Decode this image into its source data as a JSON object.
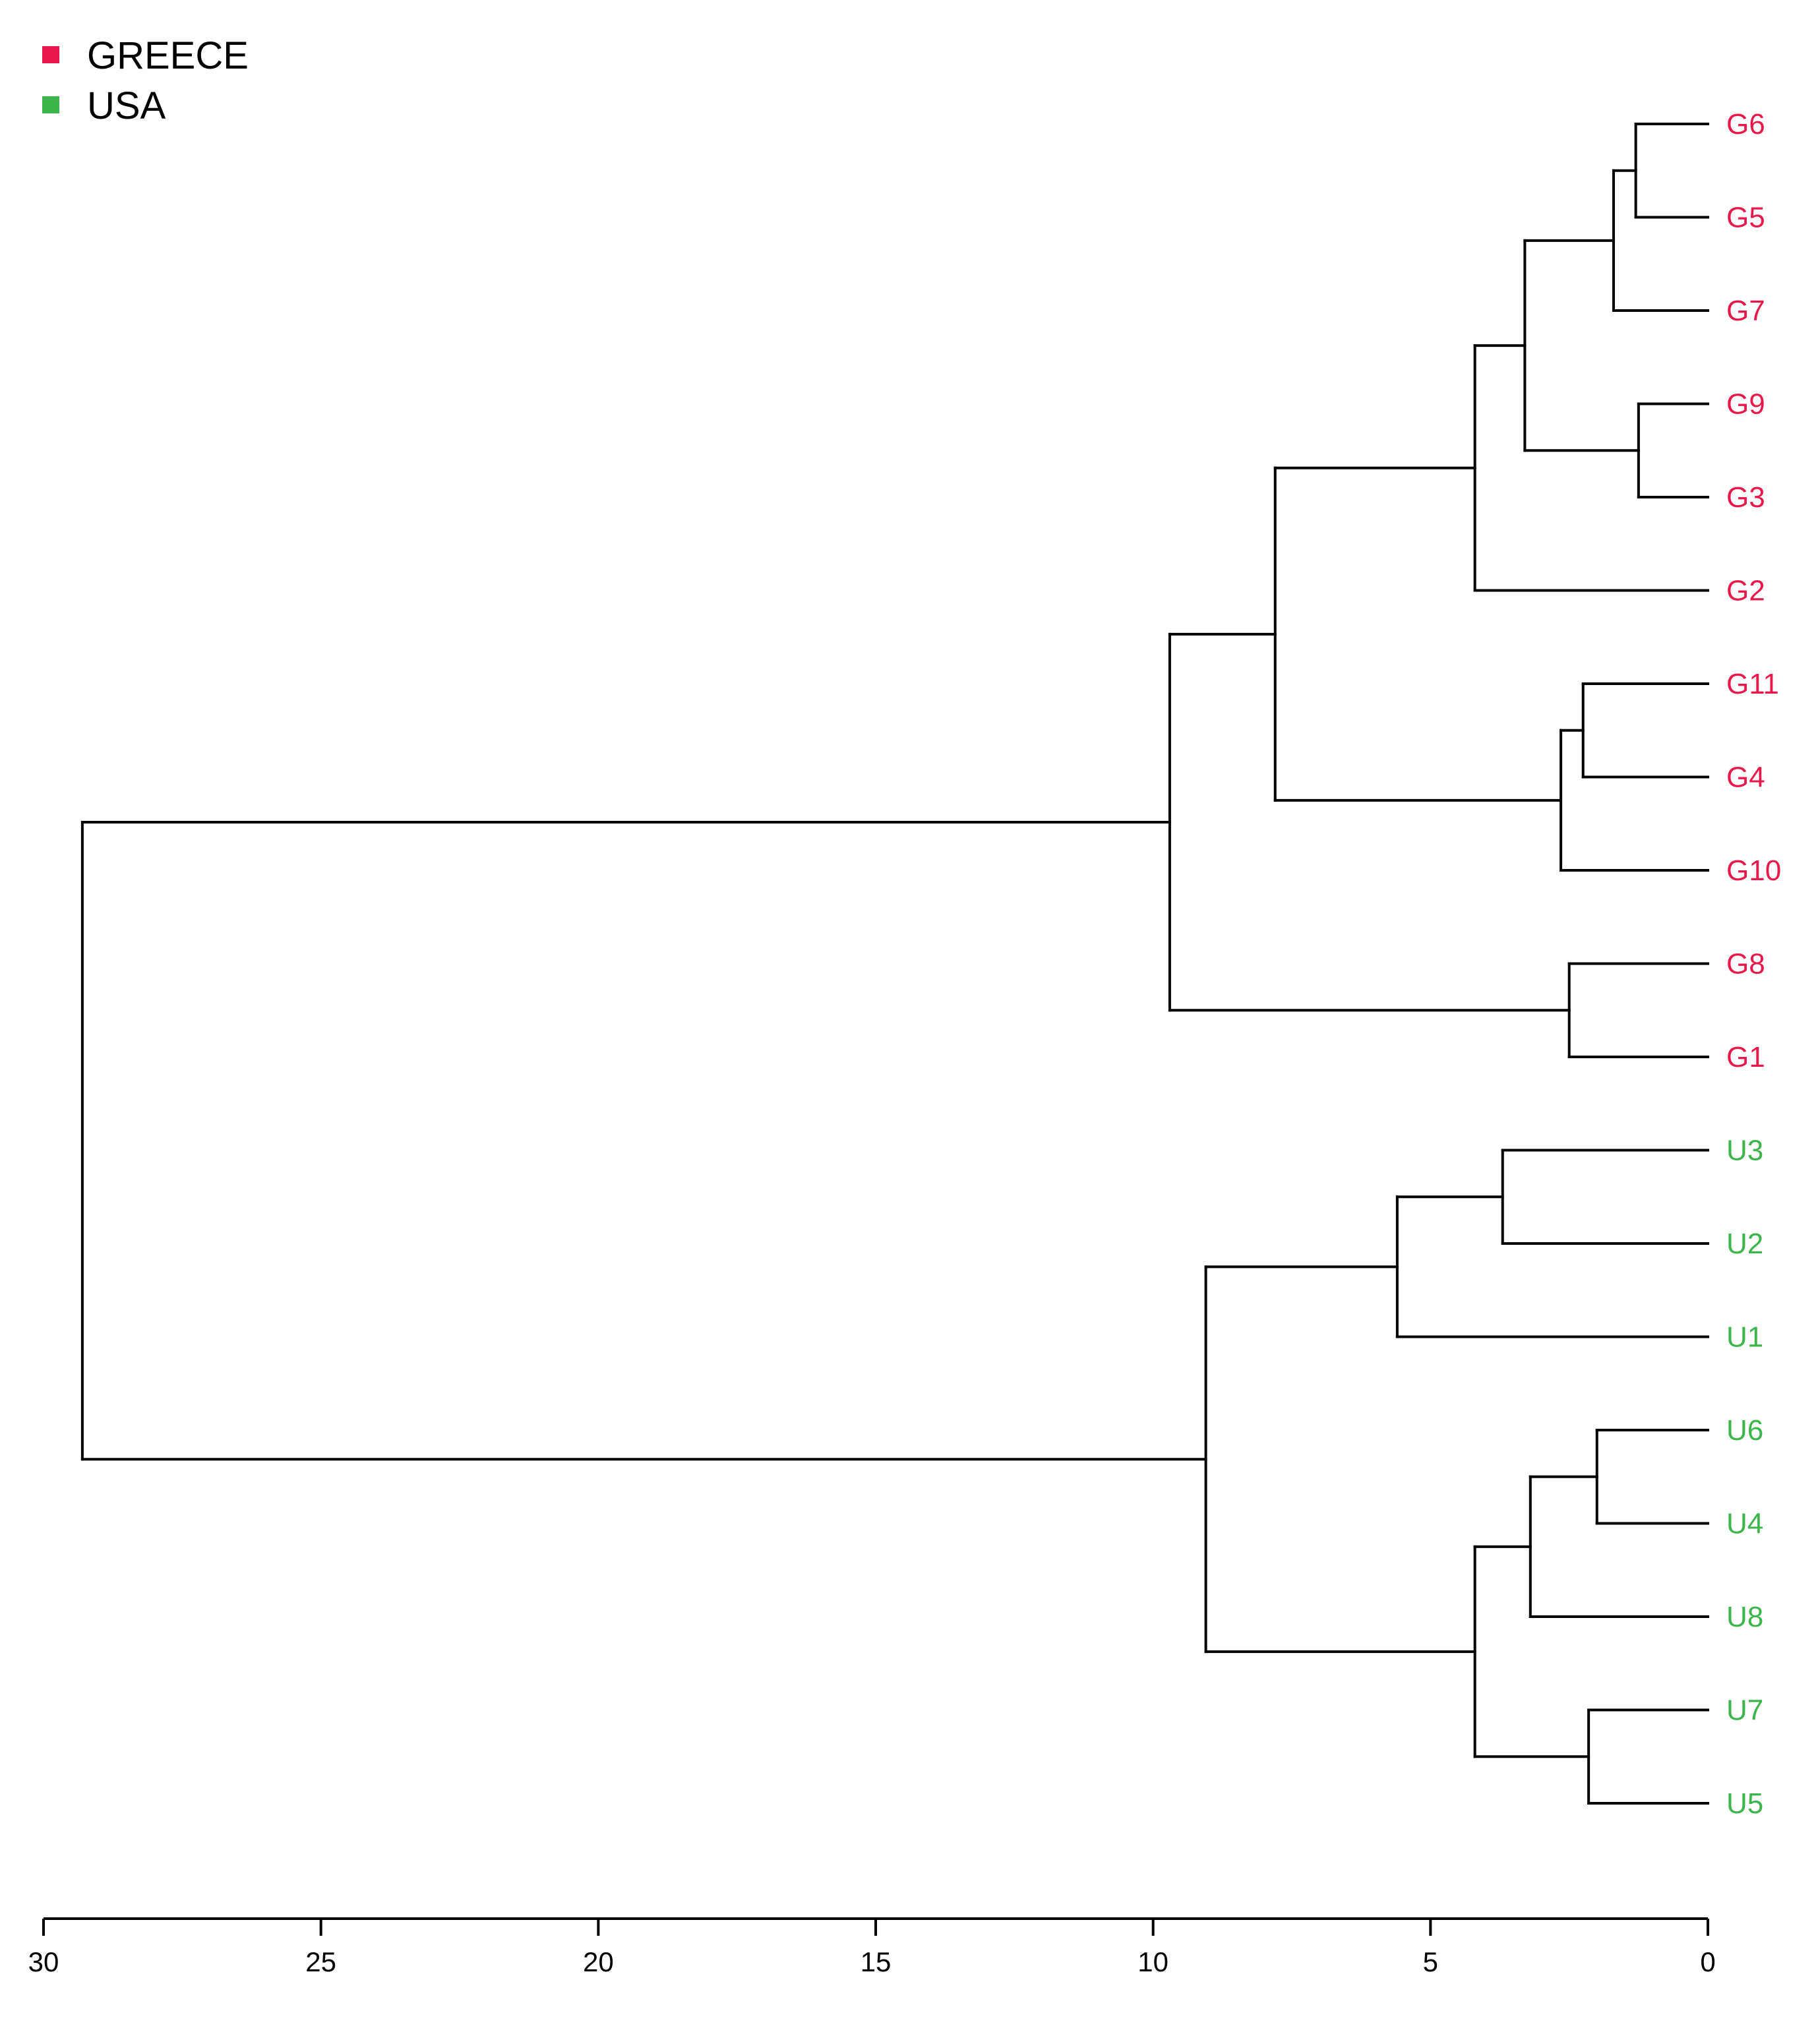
{
  "chart_data": {
    "type": "dendrogram",
    "title": "",
    "xlabel": "",
    "ylabel": "",
    "orientation": "horizontal, leaves on right",
    "xlim": [
      30,
      0
    ],
    "xticks": [
      30,
      25,
      20,
      15,
      10,
      5,
      0
    ],
    "xtick_labels": [
      "30",
      "25",
      "20",
      "15",
      "10",
      "5",
      "0"
    ],
    "legend": {
      "placement": "top-left",
      "items": [
        {
          "label": "GREECE",
          "color": "#e8194a"
        },
        {
          "label": "USA",
          "color": "#3cb54a"
        }
      ]
    },
    "groups": {
      "GREECE": {
        "color": "#e8194a"
      },
      "USA": {
        "color": "#3cb54a"
      }
    },
    "leaves": [
      {
        "label": "G6",
        "group": "GREECE"
      },
      {
        "label": "G5",
        "group": "GREECE"
      },
      {
        "label": "G7",
        "group": "GREECE"
      },
      {
        "label": "G9",
        "group": "GREECE"
      },
      {
        "label": "G3",
        "group": "GREECE"
      },
      {
        "label": "G2",
        "group": "GREECE"
      },
      {
        "label": "G11",
        "group": "GREECE"
      },
      {
        "label": "G4",
        "group": "GREECE"
      },
      {
        "label": "G10",
        "group": "GREECE"
      },
      {
        "label": "G8",
        "group": "GREECE"
      },
      {
        "label": "G1",
        "group": "GREECE"
      },
      {
        "label": "U3",
        "group": "USA"
      },
      {
        "label": "U2",
        "group": "USA"
      },
      {
        "label": "U1",
        "group": "USA"
      },
      {
        "label": "U6",
        "group": "USA"
      },
      {
        "label": "U4",
        "group": "USA"
      },
      {
        "label": "U8",
        "group": "USA"
      },
      {
        "label": "U7",
        "group": "USA"
      },
      {
        "label": "U5",
        "group": "USA"
      }
    ],
    "tree": {
      "height": 29.3,
      "children": [
        {
          "height": 9.7,
          "children": [
            {
              "height": 7.8,
              "children": [
                {
                  "height": 4.2,
                  "children": [
                    {
                      "height": 3.3,
                      "children": [
                        {
                          "height": 1.7,
                          "children": [
                            {
                              "height": 1.3,
                              "children": [
                                {
                                  "leaf": "G6"
                                },
                                {
                                  "leaf": "G5"
                                }
                              ]
                            },
                            {
                              "leaf": "G7"
                            }
                          ]
                        },
                        {
                          "height": 1.25,
                          "children": [
                            {
                              "leaf": "G9"
                            },
                            {
                              "leaf": "G3"
                            }
                          ]
                        }
                      ]
                    },
                    {
                      "leaf": "G2"
                    }
                  ]
                },
                {
                  "height": 2.65,
                  "children": [
                    {
                      "height": 2.25,
                      "children": [
                        {
                          "leaf": "G11"
                        },
                        {
                          "leaf": "G4"
                        }
                      ]
                    },
                    {
                      "leaf": "G10"
                    }
                  ]
                }
              ]
            },
            {
              "height": 2.5,
              "children": [
                {
                  "leaf": "G8"
                },
                {
                  "leaf": "G1"
                }
              ]
            }
          ]
        },
        {
          "height": 9.05,
          "children": [
            {
              "height": 5.6,
              "children": [
                {
                  "height": 3.7,
                  "children": [
                    {
                      "leaf": "U3"
                    },
                    {
                      "leaf": "U2"
                    }
                  ]
                },
                {
                  "leaf": "U1"
                }
              ]
            },
            {
              "height": 4.2,
              "children": [
                {
                  "height": 3.2,
                  "children": [
                    {
                      "height": 2.0,
                      "children": [
                        {
                          "leaf": "U6"
                        },
                        {
                          "leaf": "U4"
                        }
                      ]
                    },
                    {
                      "leaf": "U8"
                    }
                  ]
                },
                {
                  "height": 2.15,
                  "children": [
                    {
                      "leaf": "U7"
                    },
                    {
                      "leaf": "U5"
                    }
                  ]
                }
              ]
            }
          ]
        }
      ]
    }
  }
}
